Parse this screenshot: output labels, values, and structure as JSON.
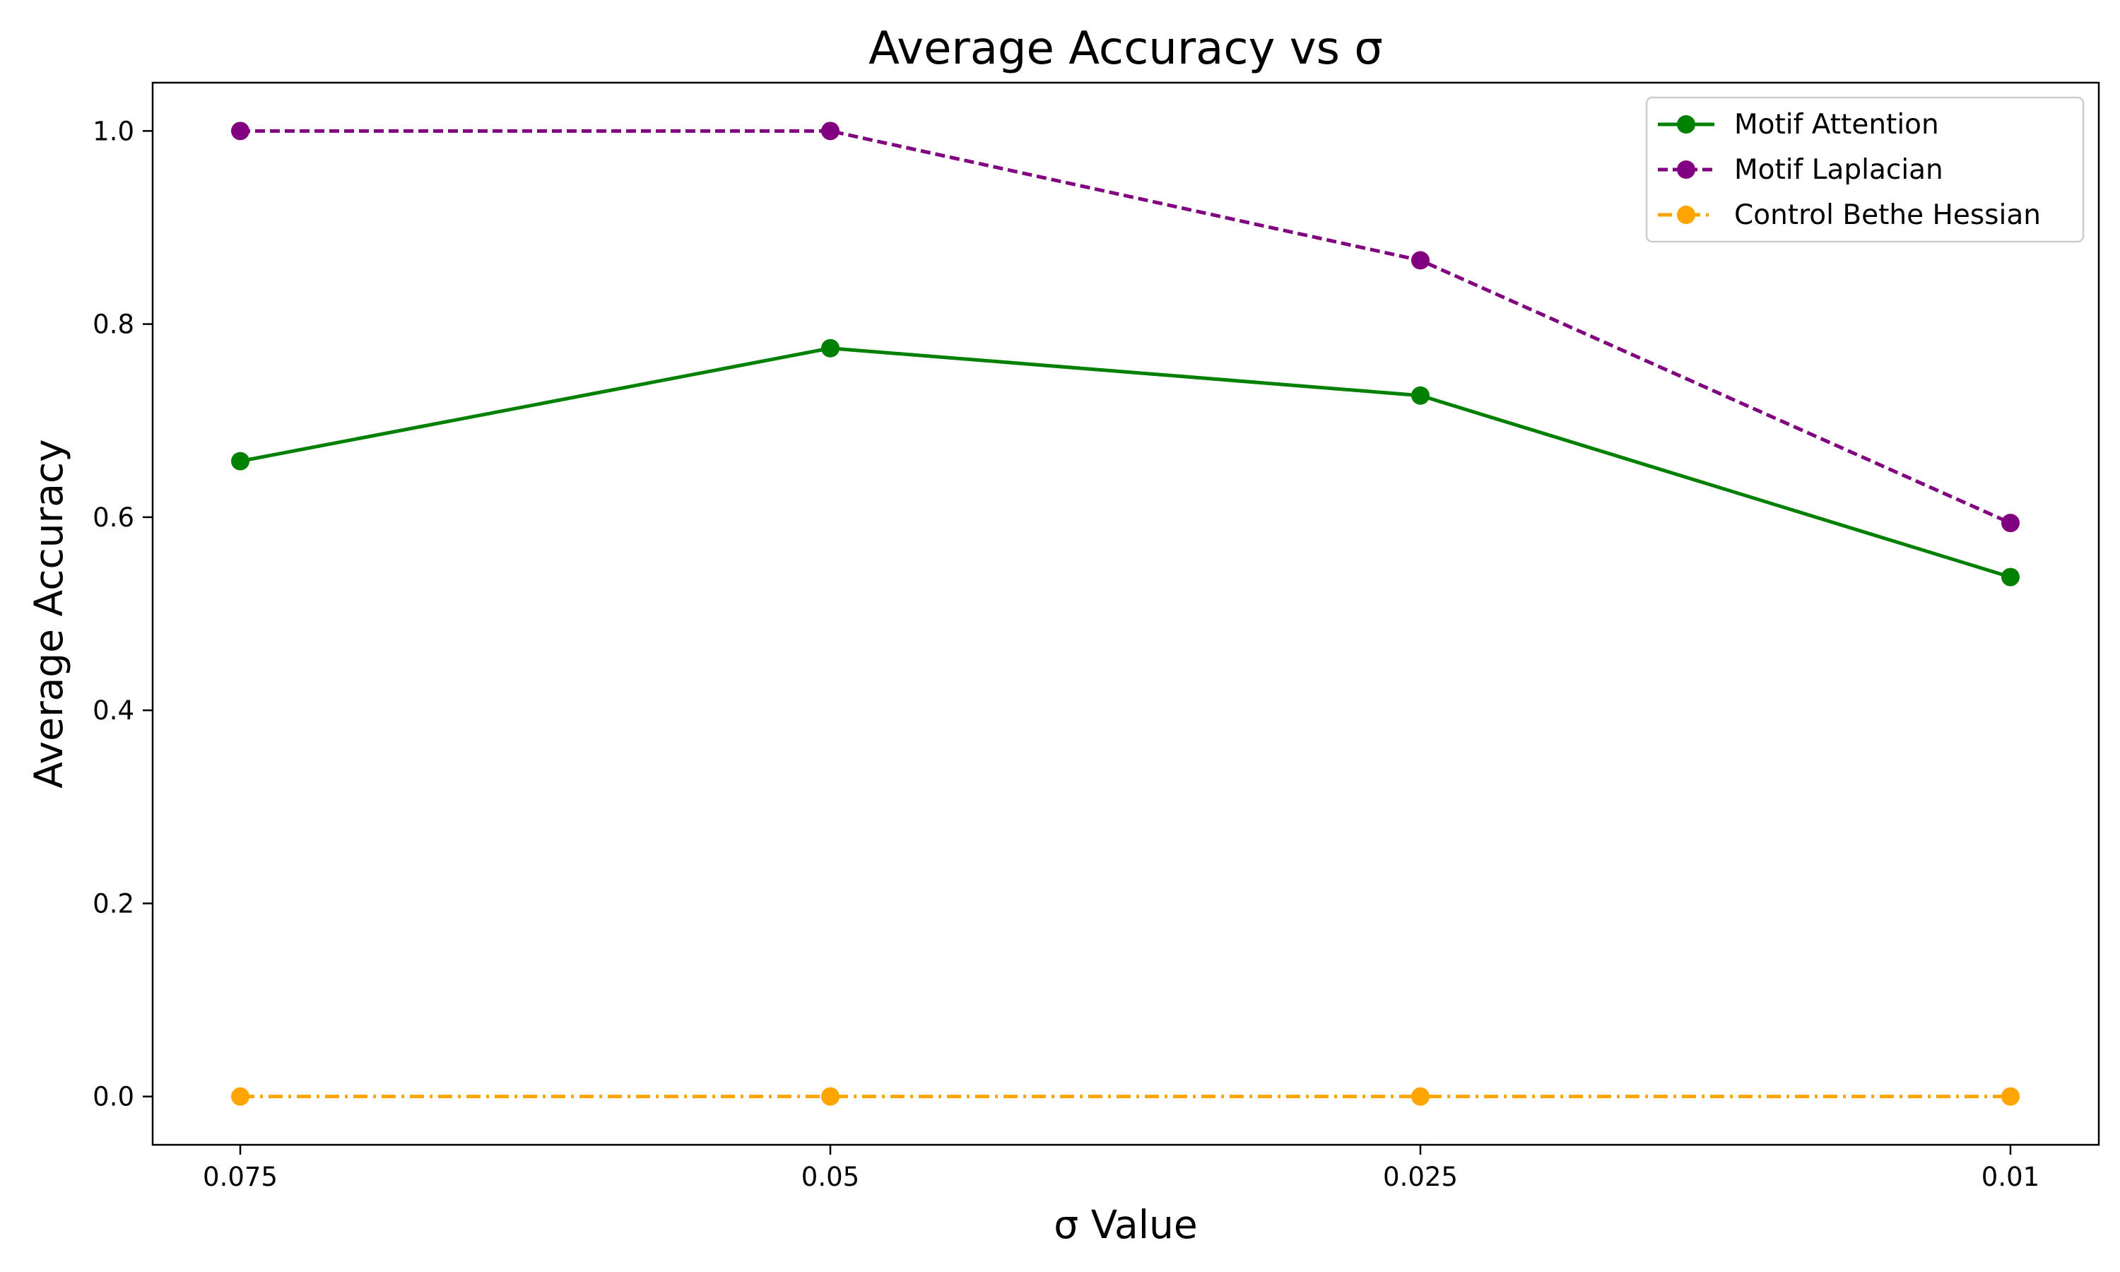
{
  "chart_data": {
    "type": "line",
    "title": "Average Accuracy vs σ",
    "xlabel": "σ Value",
    "ylabel": "Average Accuracy",
    "categories": [
      "0.075",
      "0.05",
      "0.025",
      "0.01"
    ],
    "ylim": [
      -0.05,
      1.05
    ],
    "yticks": [
      "0.0",
      "0.2",
      "0.4",
      "0.6",
      "0.8",
      "1.0"
    ],
    "grid": false,
    "legend_position": "top-right",
    "series": [
      {
        "name": "Motif Attention",
        "values": [
          0.658,
          0.775,
          0.726,
          0.538
        ],
        "color": "#008000",
        "line_style": "solid",
        "marker": "circle"
      },
      {
        "name": "Motif Laplacian",
        "values": [
          1.0,
          1.0,
          0.866,
          0.594
        ],
        "color": "#800080",
        "line_style": "dashed",
        "marker": "circle"
      },
      {
        "name": "Control Bethe Hessian",
        "values": [
          0.0,
          0.0,
          0.0,
          0.0
        ],
        "color": "#ffa500",
        "line_style": "dashdot",
        "marker": "circle"
      }
    ]
  }
}
